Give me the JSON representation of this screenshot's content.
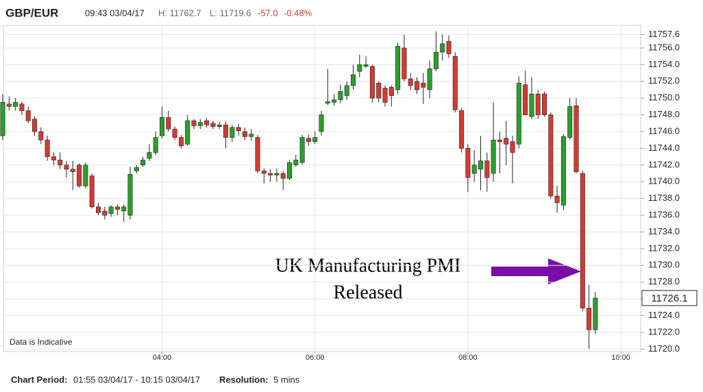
{
  "header": {
    "symbol": "GBP/EUR",
    "timestamp": "09:43 03/04/17",
    "high": "H: 11762.7",
    "low": "L: 11719.6",
    "change": "-57.0",
    "change_pct": "-0.48%"
  },
  "footer": {
    "period_label": "Chart Period:",
    "period": "01:55 03/04/17 - 10:15 03/04/17",
    "resolution_label": "Resolution:",
    "resolution": "5 mins"
  },
  "chart_data": {
    "type": "candlestick",
    "note": "Data is Indicative",
    "annotation": [
      "UK Manufacturing PMI",
      "Released"
    ],
    "up_color": "#2c9e2c",
    "down_color": "#d63a32",
    "last_price": 11726.1,
    "xlim": [
      "01:55",
      "10:15"
    ],
    "xticks": [
      "04:00",
      "06:00",
      "08:00",
      "10:00"
    ],
    "ylim": [
      11719.7,
      11758.7
    ],
    "yticks": [
      {
        "value": 11720,
        "label": "11720.0"
      },
      {
        "value": 11722,
        "label": "11722.0"
      },
      {
        "value": 11724,
        "label": "11724.0"
      },
      {
        "value": 11726,
        "label": "11726.0"
      },
      {
        "value": 11728,
        "label": "11728.0"
      },
      {
        "value": 11730,
        "label": "11730.0"
      },
      {
        "value": 11732,
        "label": "11732.0"
      },
      {
        "value": 11734,
        "label": "11734.0"
      },
      {
        "value": 11736,
        "label": "11736.0"
      },
      {
        "value": 11738,
        "label": "11738.0"
      },
      {
        "value": 11740,
        "label": "11740.0"
      },
      {
        "value": 11742,
        "label": "11742.0"
      },
      {
        "value": 11744,
        "label": "11744.0"
      },
      {
        "value": 11746,
        "label": "11746.0"
      },
      {
        "value": 11748,
        "label": "11748.0"
      },
      {
        "value": 11750,
        "label": "11750.0"
      },
      {
        "value": 11752,
        "label": "11752.0"
      },
      {
        "value": 11754,
        "label": "11754.0"
      },
      {
        "value": 11756,
        "label": "11756.0"
      },
      11757.6
    ],
    "grid": true,
    "x": [
      "01:55",
      "02:00",
      "02:05",
      "02:10",
      "02:15",
      "02:20",
      "02:25",
      "02:30",
      "02:35",
      "02:40",
      "02:45",
      "02:50",
      "02:55",
      "03:00",
      "03:05",
      "03:10",
      "03:15",
      "03:20",
      "03:25",
      "03:30",
      "03:35",
      "03:40",
      "03:45",
      "03:50",
      "03:55",
      "04:00",
      "04:05",
      "04:10",
      "04:15",
      "04:20",
      "04:25",
      "04:30",
      "04:35",
      "04:40",
      "04:45",
      "04:50",
      "04:55",
      "05:00",
      "05:05",
      "05:10",
      "05:15",
      "05:20",
      "05:25",
      "05:30",
      "05:35",
      "05:40",
      "05:45",
      "05:50",
      "05:55",
      "06:00",
      "06:05",
      "06:10",
      "06:15",
      "06:20",
      "06:25",
      "06:30",
      "06:35",
      "06:40",
      "06:45",
      "06:50",
      "06:55",
      "07:00",
      "07:05",
      "07:10",
      "07:15",
      "07:20",
      "07:25",
      "07:30",
      "07:35",
      "07:40",
      "07:45",
      "07:50",
      "07:55",
      "08:00",
      "08:05",
      "08:10",
      "08:15",
      "08:20",
      "08:25",
      "08:30",
      "08:35",
      "08:40",
      "08:45",
      "08:50",
      "08:55",
      "09:00",
      "09:05",
      "09:10",
      "09:15",
      "09:20",
      "09:25",
      "09:30",
      "09:35",
      "09:40"
    ],
    "open": [
      11745.5,
      11749.3,
      11749,
      11749.3,
      11748.5,
      11747.5,
      11746,
      11745,
      11743,
      11742.6,
      11742,
      11741.5,
      11742,
      11739.5,
      11740.7,
      11737,
      11736.5,
      11736.2,
      11737,
      11736.5,
      11736,
      11741.3,
      11742,
      11742.8,
      11743.5,
      11745.5,
      11747.7,
      11746.3,
      11745.3,
      11744.5,
      11747.3,
      11746.7,
      11747.3,
      11747,
      11746.6,
      11746.8,
      11745.3,
      11746.5,
      11746,
      11745.4,
      11745.3,
      11741.3,
      11741,
      11740.8,
      11741,
      11740.4,
      11742,
      11742.3,
      11745.2,
      11744.8,
      11746,
      11749.4,
      11749.5,
      11749.8,
      11750.3,
      11751.5,
      11753.2,
      11753.8,
      11753.8,
      11751.8,
      11751.2,
      11751.3,
      11751,
      11756,
      11752.3,
      11752,
      11751.8,
      11751,
      11753.5,
      11755.5,
      11756.8,
      11755,
      11748.5,
      11744,
      11741,
      11741.5,
      11742.5,
      11741,
      11745,
      11745.2,
      11744.8,
      11744.5,
      11751.6,
      11747.8,
      11750.5,
      11750.5,
      11748,
      11738.3,
      11737.2,
      11745.3,
      11749.1,
      11741,
      11724.9,
      11722.3
    ],
    "high": [
      11750.5,
      11750.2,
      11750,
      11749.6,
      11749,
      11747.8,
      11746.5,
      11745.5,
      11743.5,
      11743.5,
      11742.5,
      11742.5,
      11742.2,
      11742.3,
      11741,
      11737.5,
      11737,
      11737.2,
      11737.3,
      11737.3,
      11741.8,
      11742,
      11743,
      11744.5,
      11746,
      11749,
      11748.5,
      11746.6,
      11745.6,
      11748,
      11747.5,
      11747.5,
      11747.6,
      11747.3,
      11747.2,
      11747.2,
      11746.8,
      11746.9,
      11746.5,
      11746.3,
      11745.6,
      11741.6,
      11741.5,
      11741.6,
      11741.3,
      11742.6,
      11743.2,
      11745.6,
      11745.6,
      11746,
      11748.5,
      11753.5,
      11750.5,
      11751.6,
      11752,
      11754,
      11755.2,
      11755,
      11754,
      11752,
      11751.5,
      11751.5,
      11756.6,
      11757.6,
      11753,
      11752.5,
      11753,
      11754.5,
      11758,
      11757.6,
      11757.5,
      11755.5,
      11748.8,
      11744.5,
      11743.8,
      11745.5,
      11743.5,
      11749.5,
      11746,
      11747.3,
      11745.5,
      11752.6,
      11753.3,
      11752.5,
      11751,
      11750.8,
      11748.3,
      11739.5,
      11745.7,
      11750,
      11750,
      11741.3,
      11727.7,
      11726.8
    ],
    "low": [
      11745,
      11748.5,
      11748.5,
      11748,
      11747,
      11745.5,
      11744.5,
      11742.5,
      11742,
      11741.5,
      11740.5,
      11739,
      11739.3,
      11739.2,
      11736.8,
      11736,
      11735.5,
      11735.8,
      11736,
      11735.2,
      11735.5,
      11741,
      11741.8,
      11742.5,
      11743.2,
      11745.2,
      11746,
      11745,
      11744,
      11744.3,
      11746.3,
      11746.3,
      11746.5,
      11746.3,
      11746.3,
      11744,
      11744.8,
      11745.5,
      11745,
      11744.9,
      11741,
      11739.8,
      11740,
      11740,
      11739,
      11740.2,
      11741.8,
      11742,
      11744.3,
      11744.5,
      11745.5,
      11749.2,
      11749.1,
      11749.4,
      11749.8,
      11751,
      11752.5,
      11753.6,
      11749.5,
      11749.5,
      11749,
      11749,
      11750.5,
      11752,
      11751,
      11750.5,
      11749.3,
      11750,
      11753.2,
      11754.5,
      11754.8,
      11748.3,
      11743.5,
      11738.8,
      11740,
      11739,
      11738.8,
      11740,
      11741,
      11742,
      11739.8,
      11744,
      11748,
      11747.5,
      11747.5,
      11747.8,
      11738,
      11736.3,
      11736.6,
      11745,
      11741,
      11724.5,
      11720,
      11721.8
    ],
    "close": [
      11749.5,
      11749,
      11749.5,
      11748.5,
      11747.3,
      11746,
      11745,
      11743,
      11742.6,
      11742,
      11741.5,
      11741.2,
      11739.5,
      11742,
      11737,
      11736.3,
      11736,
      11737,
      11736.7,
      11737,
      11740.9,
      11741.7,
      11742.6,
      11743.5,
      11745.3,
      11747.7,
      11746.3,
      11745.3,
      11744.3,
      11747.3,
      11746.7,
      11747.1,
      11746.8,
      11746.6,
      11746.8,
      11745.3,
      11746.5,
      11746.1,
      11745.4,
      11745.7,
      11741.3,
      11741,
      11740.8,
      11741,
      11740.4,
      11742.3,
      11742.6,
      11745.3,
      11744.8,
      11745.3,
      11748,
      11749.6,
      11749.8,
      11750.8,
      11751.5,
      11752.8,
      11754,
      11754,
      11750,
      11750,
      11749.5,
      11750.3,
      11756.2,
      11752.3,
      11751.5,
      11751,
      11751.3,
      11753.5,
      11755.5,
      11756.5,
      11755.3,
      11748.6,
      11744,
      11740.5,
      11742,
      11742.5,
      11740.5,
      11745,
      11744.8,
      11744.5,
      11743.5,
      11751.8,
      11748,
      11750.5,
      11748,
      11748,
      11738.3,
      11737.5,
      11745.4,
      11749,
      11741.2,
      11724.9,
      11722.3,
      11726.1
    ]
  }
}
